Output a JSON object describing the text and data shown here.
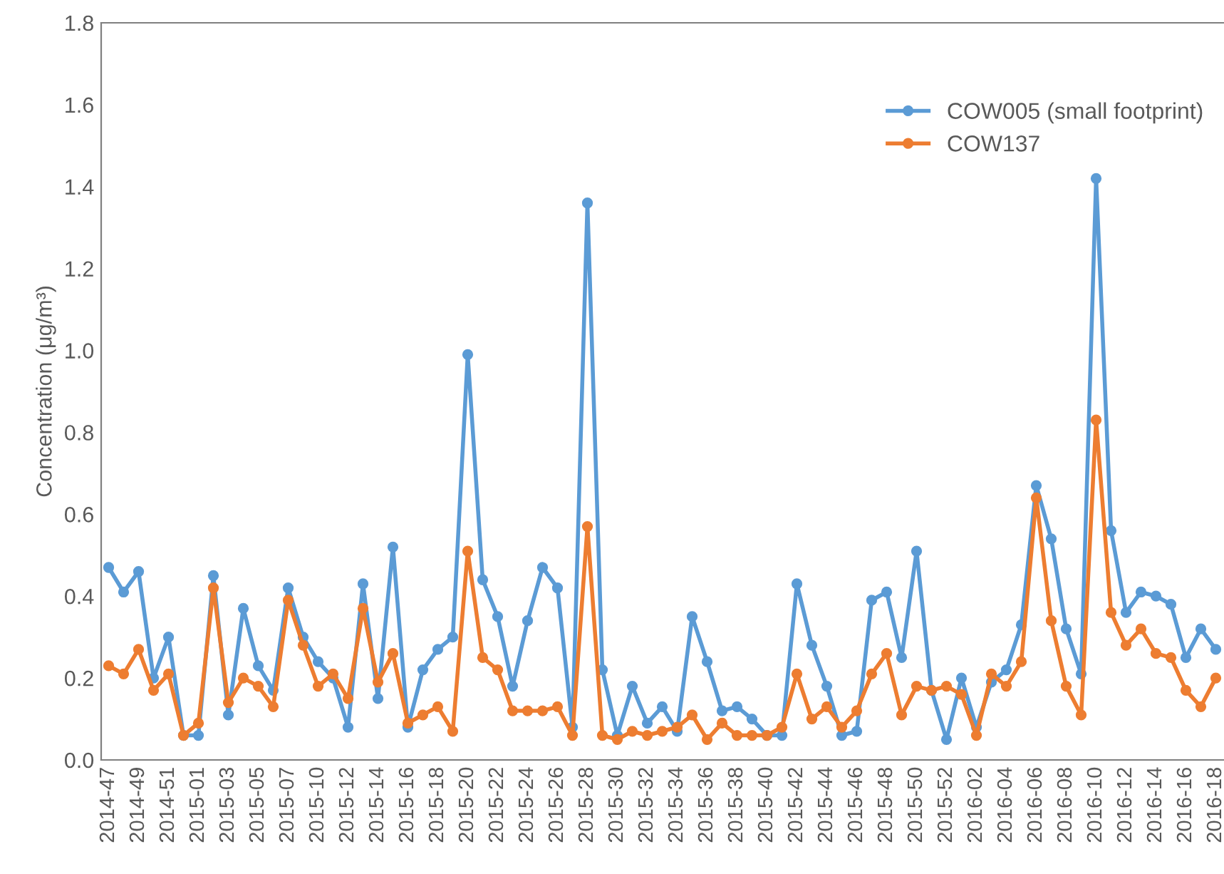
{
  "chart_data": {
    "type": "line",
    "ylabel": "Concentration (μg/m³)",
    "categories": [
      "2014-47",
      null,
      "2014-49",
      null,
      "2014-51",
      null,
      "2015-01",
      null,
      "2015-03",
      null,
      "2015-05",
      null,
      "2015-07",
      null,
      "2015-10",
      null,
      "2015-12",
      null,
      "2015-14",
      null,
      "2015-16",
      null,
      "2015-18",
      null,
      "2015-20",
      null,
      "2015-22",
      null,
      "2015-24",
      null,
      "2015-26",
      null,
      "2015-28",
      null,
      "2015-30",
      null,
      "2015-32",
      null,
      "2015-34",
      null,
      "2015-36",
      null,
      "2015-38",
      null,
      "2015-40",
      null,
      "2015-42",
      null,
      "2015-44",
      null,
      "2015-46",
      null,
      "2015-48",
      null,
      "2015-50",
      null,
      "2015-52",
      null,
      "2016-02",
      null,
      "2016-04",
      null,
      "2016-06",
      null,
      "2016-08",
      null,
      "2016-10",
      null,
      "2016-12",
      null,
      "2016-14",
      null,
      "2016-16",
      null,
      "2016-18"
    ],
    "series": [
      {
        "name": "COW005 (small footprint)",
        "color": "#5b9bd5",
        "values": [
          0.47,
          0.41,
          0.46,
          0.2,
          0.3,
          0.06,
          0.06,
          0.45,
          0.11,
          0.37,
          0.23,
          0.17,
          0.42,
          0.3,
          0.24,
          0.2,
          0.08,
          0.43,
          0.15,
          0.52,
          0.08,
          0.22,
          0.27,
          0.3,
          0.99,
          0.44,
          0.35,
          0.18,
          0.34,
          0.47,
          0.42,
          0.08,
          1.36,
          0.22,
          0.06,
          0.18,
          0.09,
          0.13,
          0.07,
          0.35,
          0.24,
          0.12,
          0.13,
          0.1,
          0.06,
          0.06,
          0.43,
          0.28,
          0.18,
          0.06,
          0.07,
          0.39,
          0.41,
          0.25,
          0.51,
          0.17,
          0.05,
          0.2,
          0.08,
          0.19,
          0.22,
          0.33,
          0.67,
          0.54,
          0.32,
          0.21,
          1.42,
          0.56,
          0.36,
          0.41,
          0.4,
          0.38,
          0.25,
          0.32,
          0.27
        ]
      },
      {
        "name": "COW137",
        "color": "#ed7d31",
        "values": [
          0.23,
          0.21,
          0.27,
          0.17,
          0.21,
          0.06,
          0.09,
          0.42,
          0.14,
          0.2,
          0.18,
          0.13,
          0.39,
          0.28,
          0.18,
          0.21,
          0.15,
          0.37,
          0.19,
          0.26,
          0.09,
          0.11,
          0.13,
          0.07,
          0.51,
          0.25,
          0.22,
          0.12,
          0.12,
          0.12,
          0.13,
          0.06,
          0.57,
          0.06,
          0.05,
          0.07,
          0.06,
          0.07,
          0.08,
          0.11,
          0.05,
          0.09,
          0.06,
          0.06,
          0.06,
          0.08,
          0.21,
          0.1,
          0.13,
          0.08,
          0.12,
          0.21,
          0.26,
          0.11,
          0.18,
          0.17,
          0.18,
          0.16,
          0.06,
          0.21,
          0.18,
          0.24,
          0.64,
          0.34,
          0.18,
          0.11,
          0.83,
          0.36,
          0.28,
          0.32,
          0.26,
          0.25,
          0.17,
          0.13,
          0.2
        ]
      }
    ],
    "ylim": [
      0,
      1.8
    ],
    "yticks": [
      {
        "value": 0,
        "label": "0.0"
      },
      {
        "value": 0.2,
        "label": "0.2"
      },
      {
        "value": 0.4,
        "label": "0.4"
      },
      {
        "value": 0.6,
        "label": "0.6"
      },
      {
        "value": 0.8,
        "label": "0.8"
      },
      {
        "value": 1.0,
        "label": "1.0"
      },
      {
        "value": 1.2,
        "label": "1.2"
      },
      {
        "value": 1.4,
        "label": "1.4"
      },
      {
        "value": 1.6,
        "label": "1.6"
      },
      {
        "value": 1.8,
        "label": "1.8"
      }
    ],
    "legend": "top right",
    "marker": "circle",
    "line_style": "solid",
    "grid": false
  }
}
